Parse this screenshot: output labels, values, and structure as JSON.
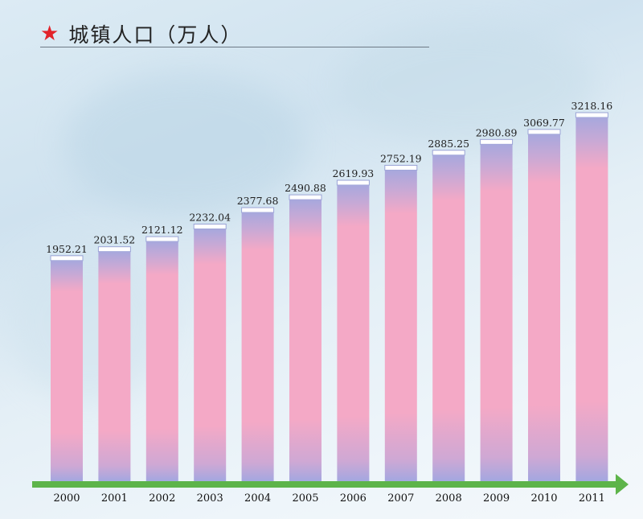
{
  "title": {
    "icon": "star-icon",
    "icon_color": "#e2232a",
    "text": "城镇人口（万人）"
  },
  "colors": {
    "bar_main": "#f4a9c6",
    "bar_edge": "#a7a8dd",
    "axis_arrow": "#5db44a"
  },
  "chart_data": {
    "type": "bar",
    "title": "城镇人口（万人）",
    "xlabel": "",
    "ylabel": "",
    "grid": false,
    "categories": [
      "2000",
      "2001",
      "2002",
      "2003",
      "2004",
      "2005",
      "2006",
      "2007",
      "2008",
      "2009",
      "2010",
      "2011"
    ],
    "values": [
      1952.21,
      2031.52,
      2121.12,
      2232.04,
      2377.68,
      2490.88,
      2619.93,
      2752.19,
      2885.25,
      2980.89,
      3069.77,
      3218.16
    ],
    "value_labels": [
      "1952.21",
      "2031.52",
      "2121.12",
      "2232.04",
      "2377.68",
      "2490.88",
      "2619.93",
      "2752.19",
      "2885.25",
      "2980.89",
      "3069.77",
      "3218.16"
    ],
    "ylim": [
      0,
      3218.16
    ]
  }
}
